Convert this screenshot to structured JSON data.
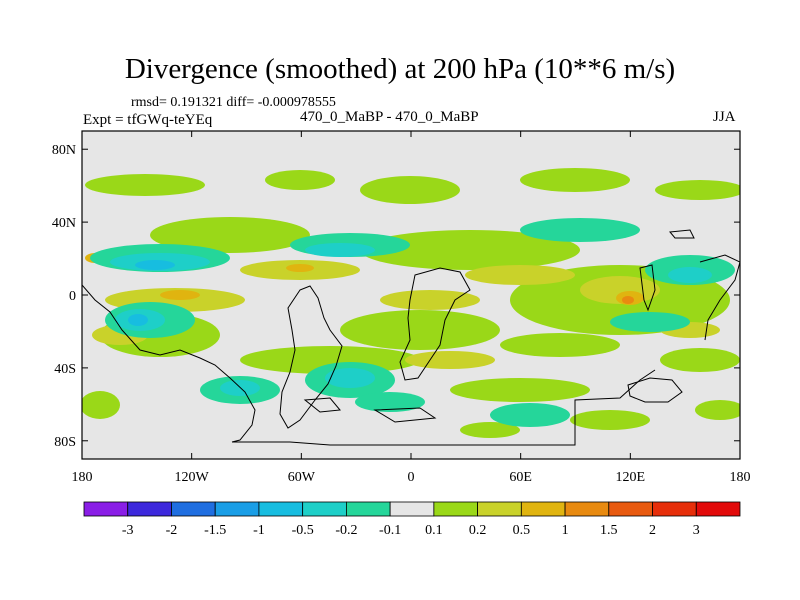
{
  "chart_data": {
    "type": "heatmap",
    "title": "Divergence (smoothed) at 200 hPa (10**6 m/s)",
    "stats_text": "rmsd= 0.191321 diff= -0.000978555",
    "left_label": "Expt = tfGWq-teYEq",
    "center_label": "470_0_MaBP - 470_0_MaBP",
    "right_label": "JJA",
    "xlim": [
      -180,
      180
    ],
    "ylim": [
      -90,
      90
    ],
    "x_ticks": [
      -180,
      -120,
      -60,
      0,
      60,
      120,
      180
    ],
    "x_tick_labels": [
      "180",
      "120W",
      "60W",
      "0",
      "60E",
      "120E",
      "180"
    ],
    "y_ticks": [
      80,
      40,
      0,
      -40,
      -80
    ],
    "y_tick_labels": [
      "80N",
      "40N",
      "0",
      "40S",
      "80S"
    ],
    "colorbar": {
      "levels": [
        "-3",
        "-2",
        "-1.5",
        "-1",
        "-0.5",
        "-0.2",
        "-0.1",
        "0.1",
        "0.2",
        "0.5",
        "1",
        "1.5",
        "2",
        "3"
      ],
      "colors": [
        "#8a1ee6",
        "#3d28dc",
        "#1f6ee0",
        "#1a9ee6",
        "#17bde0",
        "#1ecfc8",
        "#25d69a",
        "#e6e6e6",
        "#9ad818",
        "#c9d22a",
        "#e0b410",
        "#e88a10",
        "#e85a10",
        "#e62e0a",
        "#e20a0a"
      ]
    }
  }
}
